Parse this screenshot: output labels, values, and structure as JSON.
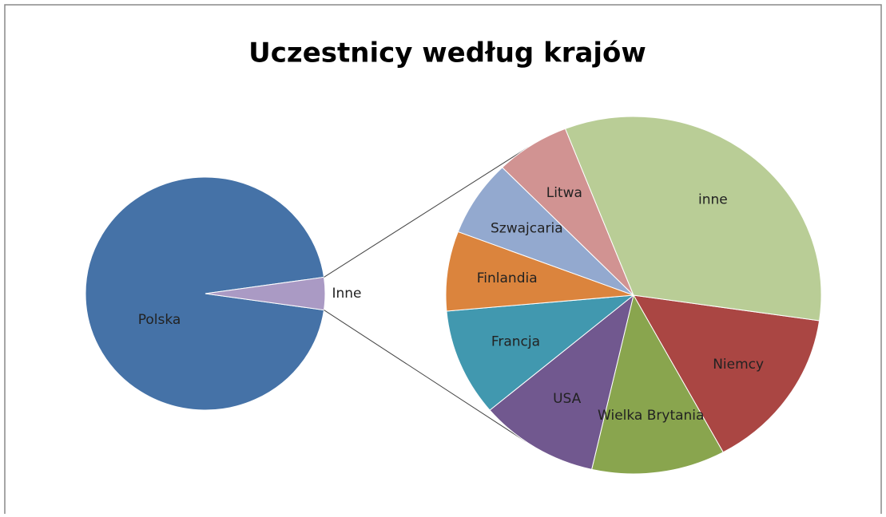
{
  "chart_data": {
    "type": "pie-of-pie",
    "title": "Uczestnicy według krajów",
    "main": {
      "categories": [
        "Polska",
        "Inne"
      ],
      "values": [
        95.5,
        4.5
      ],
      "colors": [
        "#4572a7",
        "#aa9ac4"
      ]
    },
    "secondary": {
      "categories": [
        "Niemcy",
        "Wielka Brytania",
        "USA",
        "Francja",
        "Finlandia",
        "Szwajcaria",
        "Litwa",
        "inne"
      ],
      "values": [
        14.8,
        11.5,
        10.3,
        9.7,
        7.2,
        6.9,
        6.4,
        33.2
      ],
      "colors": [
        "#aa4643",
        "#89a54e",
        "#71588f",
        "#4198af",
        "#db843d",
        "#93a9cf",
        "#d19392",
        "#b9cd96"
      ]
    }
  }
}
